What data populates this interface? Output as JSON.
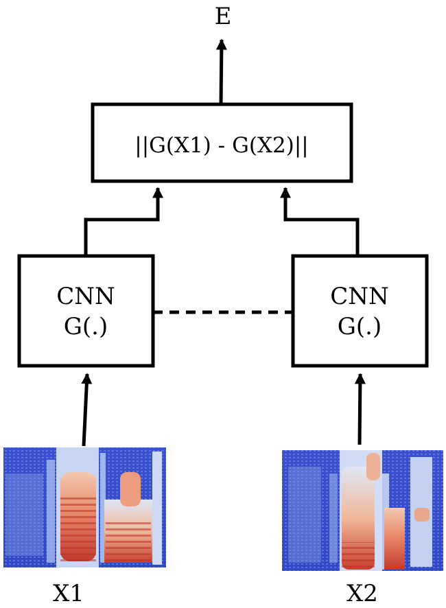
{
  "output": {
    "label": "E"
  },
  "distance_box": {
    "label": "||G(X1) - G(X2)||"
  },
  "cnn_left": {
    "line1": "CNN",
    "line2": "G(.)"
  },
  "cnn_right": {
    "line1": "CNN",
    "line2": "G(.)"
  },
  "inputs": [
    {
      "label": "X1"
    },
    {
      "label": "X2"
    }
  ]
}
